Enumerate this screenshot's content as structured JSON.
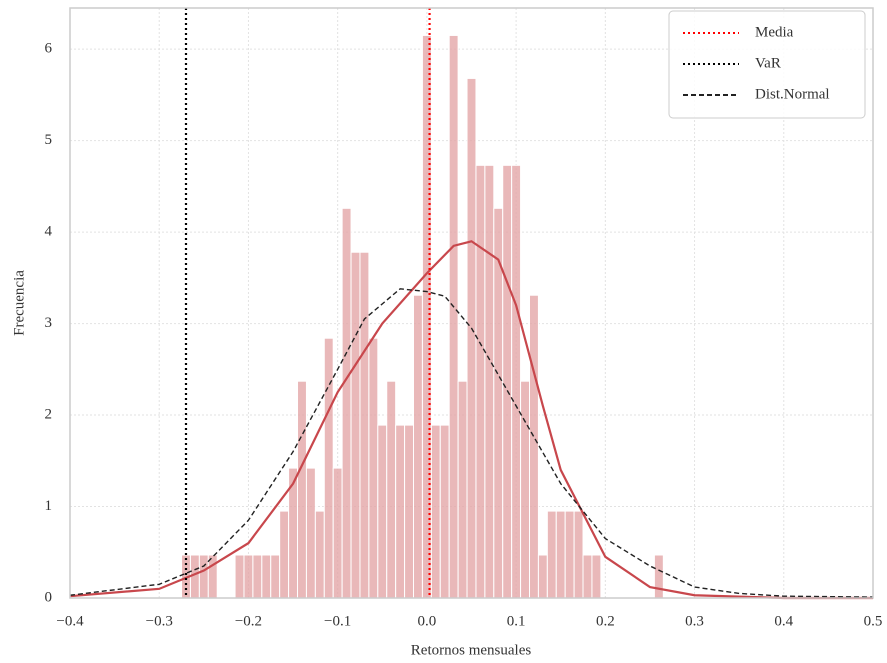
{
  "chart_data": {
    "type": "histogram",
    "x_label": "Retornos mensuales",
    "y_label": "Frecuencia",
    "bins": [
      -0.275,
      -0.265,
      -0.255,
      -0.245,
      -0.235,
      -0.225,
      -0.215,
      -0.205,
      -0.195,
      -0.185,
      -0.175,
      -0.165,
      -0.155,
      -0.145,
      -0.135,
      -0.125,
      -0.115,
      -0.105,
      -0.095,
      -0.085,
      -0.075,
      -0.065,
      -0.055,
      -0.045,
      -0.035,
      -0.025,
      -0.015,
      -0.005,
      0.005,
      0.015,
      0.025,
      0.035,
      0.045,
      0.055,
      0.065,
      0.075,
      0.085,
      0.095,
      0.105,
      0.115,
      0.125,
      0.135,
      0.145,
      0.155,
      0.165,
      0.175,
      0.185,
      0.195,
      0.205,
      0.215,
      0.225,
      0.235,
      0.245,
      0.255,
      0.265
    ],
    "values": [
      0.47,
      0.47,
      0.47,
      0.47,
      0,
      0,
      0.47,
      0.47,
      0.47,
      0.47,
      0.47,
      0.95,
      1.42,
      2.37,
      1.42,
      0.95,
      2.84,
      1.42,
      4.26,
      3.78,
      3.78,
      2.84,
      1.89,
      2.37,
      1.89,
      1.89,
      3.31,
      6.15,
      1.89,
      1.89,
      6.15,
      2.37,
      5.68,
      4.73,
      4.73,
      4.26,
      4.73,
      4.73,
      2.37,
      3.31,
      0.47,
      0.95,
      0.95,
      0.95,
      0.95,
      0.47,
      0.47,
      0,
      0,
      0,
      0,
      0,
      0,
      0.47
    ],
    "color": "#e3a6a8",
    "kde": {
      "color": "#c8474c",
      "x": [
        -0.4,
        -0.3,
        -0.25,
        -0.2,
        -0.15,
        -0.1,
        -0.05,
        0.0,
        0.03,
        0.05,
        0.08,
        0.1,
        0.13,
        0.15,
        0.2,
        0.25,
        0.3,
        0.4,
        0.5
      ],
      "values": [
        0.02,
        0.1,
        0.3,
        0.6,
        1.25,
        2.25,
        3.0,
        3.55,
        3.85,
        3.9,
        3.7,
        3.2,
        2.1,
        1.4,
        0.45,
        0.12,
        0.03,
        0.0,
        0.0
      ]
    },
    "series": [
      {
        "name": "Media",
        "color": "#ff0000",
        "style": "dotted",
        "x": 0.003
      },
      {
        "name": "VaR",
        "color": "#000000",
        "style": "dotted",
        "x": -0.27
      },
      {
        "name": "Dist.Normal",
        "color": "#222222",
        "style": "dashed",
        "x": [
          -0.4,
          -0.3,
          -0.25,
          -0.2,
          -0.15,
          -0.1,
          -0.07,
          -0.03,
          0.0,
          0.02,
          0.05,
          0.1,
          0.15,
          0.2,
          0.25,
          0.3,
          0.35,
          0.4,
          0.5
        ],
        "values": [
          0.03,
          0.15,
          0.35,
          0.85,
          1.6,
          2.5,
          3.05,
          3.38,
          3.35,
          3.3,
          2.95,
          2.1,
          1.25,
          0.65,
          0.35,
          0.12,
          0.05,
          0.02,
          0.01
        ]
      }
    ],
    "xlim": [
      -0.4,
      0.5
    ],
    "ylim": [
      0,
      6.45
    ],
    "xticks": [
      {
        "value": -0.4,
        "label": "−0.4"
      },
      {
        "value": -0.3,
        "label": "−0.3"
      },
      {
        "value": -0.2,
        "label": "−0.2"
      },
      {
        "value": -0.1,
        "label": "−0.1"
      },
      {
        "value": 0,
        "label": "0.0"
      },
      0.1,
      0.2,
      0.3,
      0.4,
      0.5
    ],
    "yticks": [
      0,
      1,
      2,
      3,
      4,
      5,
      6
    ],
    "grid": true,
    "legend": "upper right"
  }
}
